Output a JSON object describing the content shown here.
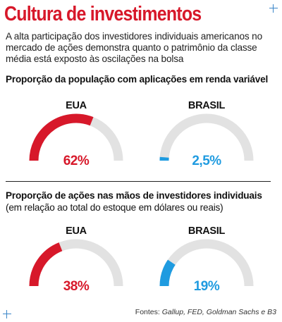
{
  "header": {
    "title": "Cultura de investimentos",
    "subtitle": "A alta participação dos investidores individuais americanos no mercado de ações demonstra quanto o patrimônio da classe média está exposto às oscilações na bolsa"
  },
  "colors": {
    "title": "#d7182a",
    "eua": "#d7182a",
    "brasil": "#1f9be0",
    "track": "#e2e2e2",
    "crosshair": "#3a86c8"
  },
  "decor": [
    "crosshair-icon",
    "crosshair-icon"
  ],
  "chart_data": [
    {
      "type": "gauge",
      "title": "Proporção da população com aplicações em renda variável",
      "subtitle": "",
      "unit": "%",
      "series": [
        {
          "name": "EUA",
          "value": 62,
          "label": "62%",
          "color": "#d7182a"
        },
        {
          "name": "BRASIL",
          "value": 2.5,
          "label": "2,5%",
          "color": "#1f9be0"
        }
      ],
      "range": [
        0,
        100
      ]
    },
    {
      "type": "gauge",
      "title": "Proporção de ações nas mãos de investidores individuais",
      "subtitle": "(em relação ao total do estoque em dólares ou reais)",
      "unit": "%",
      "series": [
        {
          "name": "EUA",
          "value": 38,
          "label": "38%",
          "color": "#d7182a"
        },
        {
          "name": "BRASIL",
          "value": 19,
          "label": "19%",
          "color": "#1f9be0"
        }
      ],
      "range": [
        0,
        100
      ]
    }
  ],
  "footer": {
    "source_label": "Fontes:",
    "source_names": "Gallup, FED, Goldman Sachs e B3"
  }
}
